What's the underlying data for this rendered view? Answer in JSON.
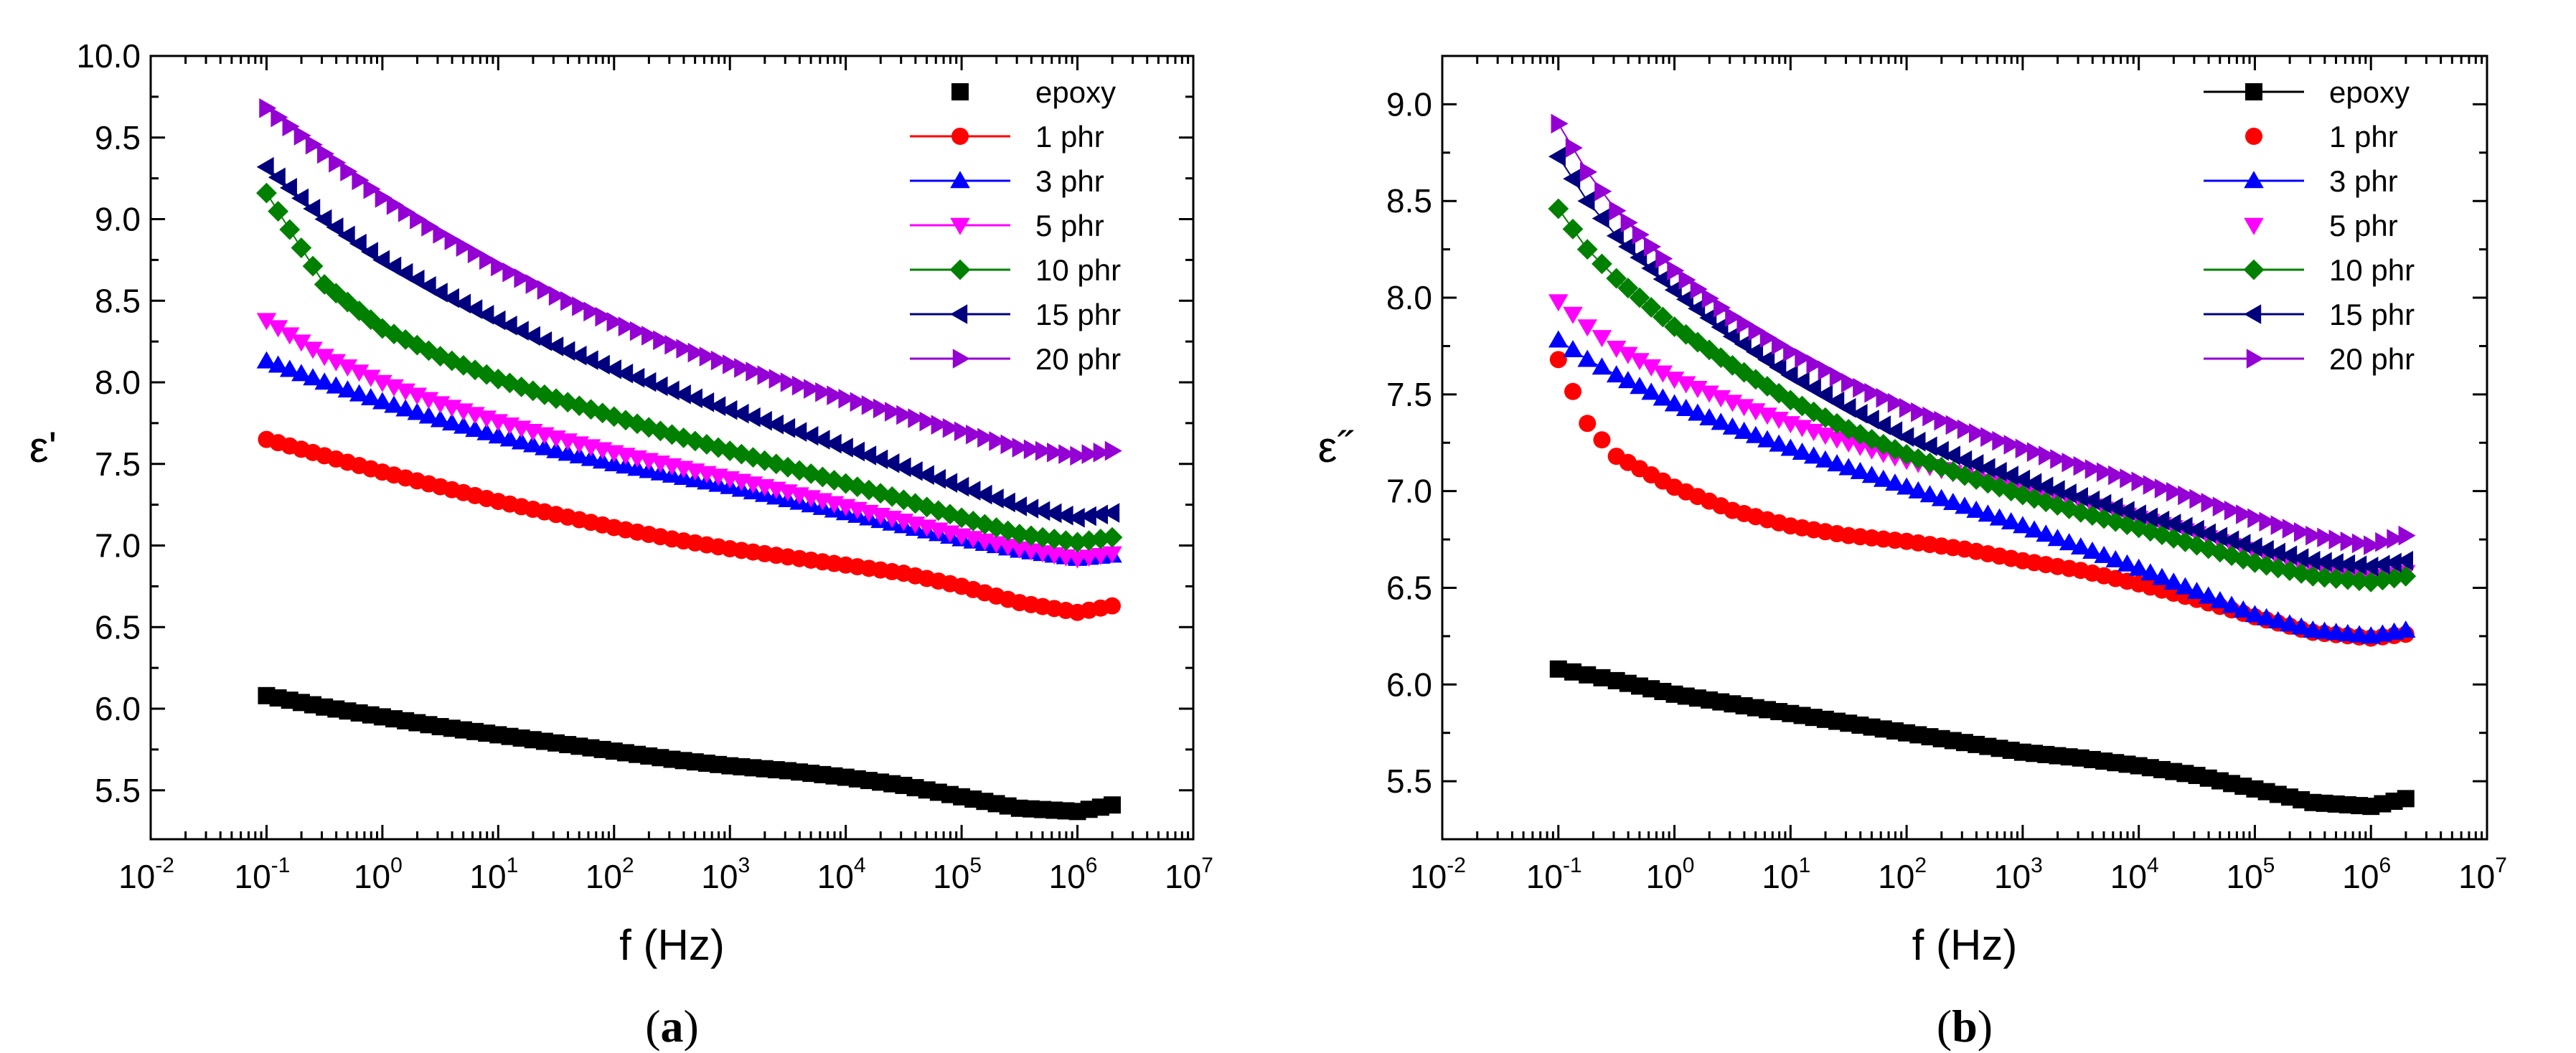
{
  "chart_data": [
    {
      "type": "scatter",
      "panel_label": "a",
      "xlabel": "f (Hz)",
      "ylabel": "ε'",
      "x_scale": "log",
      "xlim_exp": [
        -2,
        7
      ],
      "ylim": [
        5.2,
        10.0
      ],
      "x_ticks_exp": [
        -2,
        -1,
        0,
        1,
        2,
        3,
        4,
        5,
        6,
        7
      ],
      "y_ticks": [
        "5.5",
        "6.0",
        "6.5",
        "7.0",
        "7.5",
        "8.0",
        "8.5",
        "9.0",
        "9.5",
        "10.0"
      ],
      "legend_position": "top-right",
      "x_exp": [
        -1,
        -0.5,
        0,
        0.5,
        1,
        1.5,
        2,
        2.5,
        3,
        3.5,
        4,
        4.5,
        5,
        5.5,
        6,
        6.3
      ],
      "series": [
        {
          "name": "epoxy",
          "color": "#000000",
          "marker": "square",
          "line": false,
          "values": [
            6.08,
            6.01,
            5.95,
            5.89,
            5.84,
            5.79,
            5.74,
            5.69,
            5.65,
            5.62,
            5.58,
            5.53,
            5.46,
            5.39,
            5.37,
            5.41
          ]
        },
        {
          "name": "1 phr",
          "color": "#ff0000",
          "marker": "circle",
          "line": true,
          "values": [
            7.65,
            7.55,
            7.45,
            7.36,
            7.27,
            7.19,
            7.11,
            7.04,
            6.98,
            6.93,
            6.88,
            6.83,
            6.75,
            6.65,
            6.59,
            6.63
          ]
        },
        {
          "name": "3 phr",
          "color": "#0000ff",
          "marker": "triangle-up",
          "line": true,
          "values": [
            8.13,
            8.0,
            7.88,
            7.77,
            7.67,
            7.58,
            7.5,
            7.43,
            7.36,
            7.28,
            7.2,
            7.12,
            7.04,
            6.97,
            6.92,
            6.94
          ]
        },
        {
          "name": "5 phr",
          "color": "#ff00ff",
          "marker": "triangle-down",
          "line": true,
          "values": [
            8.38,
            8.16,
            8.0,
            7.87,
            7.76,
            7.66,
            7.57,
            7.49,
            7.41,
            7.33,
            7.24,
            7.15,
            7.06,
            6.98,
            6.92,
            6.95
          ]
        },
        {
          "name": "10 phr",
          "color": "#008000",
          "marker": "diamond",
          "line": true,
          "values": [
            9.16,
            8.6,
            8.33,
            8.16,
            8.02,
            7.9,
            7.79,
            7.68,
            7.58,
            7.48,
            7.38,
            7.28,
            7.17,
            7.07,
            7.02,
            7.05
          ]
        },
        {
          "name": "15 phr",
          "color": "#00007f",
          "marker": "triangle-left",
          "line": true,
          "values": [
            9.32,
            9.0,
            8.75,
            8.55,
            8.38,
            8.22,
            8.08,
            7.95,
            7.83,
            7.72,
            7.6,
            7.48,
            7.36,
            7.24,
            7.17,
            7.2
          ]
        },
        {
          "name": "20 phr",
          "color": "#9400d3",
          "marker": "triangle-right",
          "line": true,
          "values": [
            9.68,
            9.4,
            9.13,
            8.91,
            8.71,
            8.53,
            8.37,
            8.23,
            8.11,
            8.0,
            7.9,
            7.8,
            7.7,
            7.6,
            7.55,
            7.58
          ]
        }
      ]
    },
    {
      "type": "scatter",
      "panel_label": "b",
      "xlabel": "f (Hz)",
      "ylabel": "ε˝",
      "x_scale": "log",
      "xlim_exp": [
        -2,
        7
      ],
      "ylim": [
        5.2,
        9.25
      ],
      "x_ticks_exp": [
        -2,
        -1,
        0,
        1,
        2,
        3,
        4,
        5,
        6,
        7
      ],
      "y_ticks": [
        "5.5",
        "6.0",
        "6.5",
        "7.0",
        "7.5",
        "8.0",
        "8.5",
        "9.0"
      ],
      "legend_position": "top-right",
      "x_exp": [
        -1,
        -0.75,
        -0.5,
        0,
        0.5,
        1,
        1.5,
        2,
        2.5,
        3,
        3.5,
        4,
        4.5,
        5,
        5.5,
        6,
        6.3
      ],
      "series": [
        {
          "name": "epoxy",
          "color": "#000000",
          "marker": "square",
          "line": true,
          "values": [
            6.08,
            6.05,
            6.02,
            5.95,
            5.9,
            5.85,
            5.8,
            5.75,
            5.7,
            5.65,
            5.62,
            5.58,
            5.53,
            5.46,
            5.39,
            5.37,
            5.41
          ]
        },
        {
          "name": "1 phr",
          "color": "#ff0000",
          "marker": "circle",
          "line": false,
          "values": [
            7.68,
            7.35,
            7.18,
            7.02,
            6.9,
            6.82,
            6.77,
            6.74,
            6.7,
            6.64,
            6.59,
            6.52,
            6.44,
            6.35,
            6.27,
            6.24,
            6.26
          ]
        },
        {
          "name": "3 phr",
          "color": "#0000ff",
          "marker": "triangle-up",
          "line": true,
          "values": [
            7.78,
            7.68,
            7.6,
            7.45,
            7.33,
            7.22,
            7.12,
            7.02,
            6.92,
            6.82,
            6.71,
            6.6,
            6.48,
            6.36,
            6.28,
            6.25,
            6.28
          ]
        },
        {
          "name": "5 phr",
          "color": "#ff00ff",
          "marker": "triangle-down",
          "line": false,
          "values": [
            7.98,
            7.85,
            7.74,
            7.58,
            7.46,
            7.35,
            7.25,
            7.16,
            7.08,
            7.01,
            6.94,
            6.86,
            6.78,
            6.68,
            6.6,
            6.55,
            6.58
          ]
        },
        {
          "name": "10 phr",
          "color": "#008000",
          "marker": "diamond",
          "line": true,
          "values": [
            8.46,
            8.25,
            8.1,
            7.85,
            7.65,
            7.47,
            7.32,
            7.19,
            7.08,
            6.98,
            6.89,
            6.81,
            6.72,
            6.63,
            6.56,
            6.53,
            6.56
          ]
        },
        {
          "name": "15 phr",
          "color": "#00007f",
          "marker": "triangle-left",
          "line": true,
          "values": [
            8.73,
            8.5,
            8.32,
            8.04,
            7.8,
            7.6,
            7.43,
            7.28,
            7.16,
            7.06,
            6.97,
            6.88,
            6.8,
            6.71,
            6.64,
            6.61,
            6.64
          ]
        },
        {
          "name": "20 phr",
          "color": "#9400d3",
          "marker": "triangle-right",
          "line": true,
          "values": [
            8.9,
            8.65,
            8.45,
            8.14,
            7.9,
            7.72,
            7.56,
            7.43,
            7.32,
            7.22,
            7.13,
            7.05,
            6.96,
            6.86,
            6.77,
            6.72,
            6.77
          ]
        }
      ]
    }
  ]
}
